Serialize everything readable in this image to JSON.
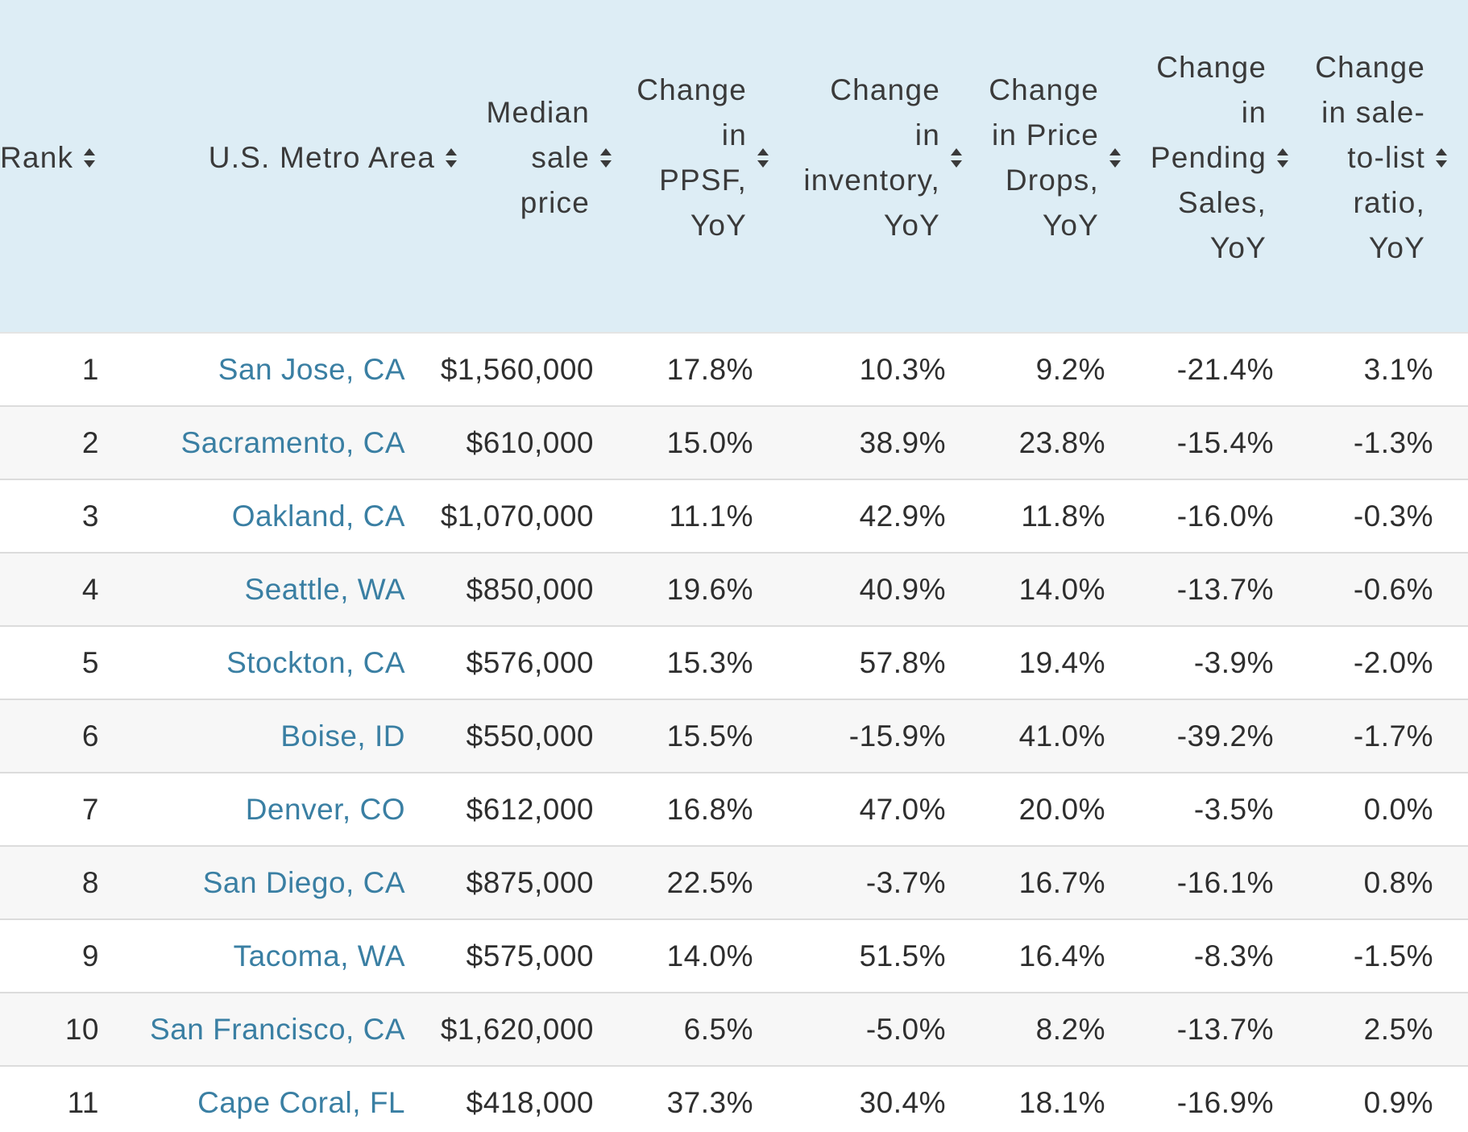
{
  "table": {
    "headers": [
      {
        "key": "rank",
        "label": "Rank"
      },
      {
        "key": "metro",
        "label": "U.S. Metro Area"
      },
      {
        "key": "price",
        "label": "Median\nsale\nprice"
      },
      {
        "key": "ppsf",
        "label": "Change\nin\nPPSF,\nYoY"
      },
      {
        "key": "inv",
        "label": "Change\nin\ninventory,\nYoY"
      },
      {
        "key": "drops",
        "label": "Change\nin Price\nDrops,\nYoY"
      },
      {
        "key": "pending",
        "label": "Change\nin\nPending\nSales,\nYoY"
      },
      {
        "key": "stl",
        "label": "Change\nin sale-\nto-list\nratio,\nYoY"
      }
    ],
    "rows": [
      {
        "rank": "1",
        "metro": "San Jose, CA",
        "price": "$1,560,000",
        "ppsf": "17.8%",
        "inv": "10.3%",
        "drops": "9.2%",
        "pending": "-21.4%",
        "stl": "3.1%"
      },
      {
        "rank": "2",
        "metro": "Sacramento, CA",
        "price": "$610,000",
        "ppsf": "15.0%",
        "inv": "38.9%",
        "drops": "23.8%",
        "pending": "-15.4%",
        "stl": "-1.3%"
      },
      {
        "rank": "3",
        "metro": "Oakland, CA",
        "price": "$1,070,000",
        "ppsf": "11.1%",
        "inv": "42.9%",
        "drops": "11.8%",
        "pending": "-16.0%",
        "stl": "-0.3%"
      },
      {
        "rank": "4",
        "metro": "Seattle, WA",
        "price": "$850,000",
        "ppsf": "19.6%",
        "inv": "40.9%",
        "drops": "14.0%",
        "pending": "-13.7%",
        "stl": "-0.6%"
      },
      {
        "rank": "5",
        "metro": "Stockton, CA",
        "price": "$576,000",
        "ppsf": "15.3%",
        "inv": "57.8%",
        "drops": "19.4%",
        "pending": "-3.9%",
        "stl": "-2.0%"
      },
      {
        "rank": "6",
        "metro": "Boise, ID",
        "price": "$550,000",
        "ppsf": "15.5%",
        "inv": "-15.9%",
        "drops": "41.0%",
        "pending": "-39.2%",
        "stl": "-1.7%"
      },
      {
        "rank": "7",
        "metro": "Denver, CO",
        "price": "$612,000",
        "ppsf": "16.8%",
        "inv": "47.0%",
        "drops": "20.0%",
        "pending": "-3.5%",
        "stl": "0.0%"
      },
      {
        "rank": "8",
        "metro": "San Diego, CA",
        "price": "$875,000",
        "ppsf": "22.5%",
        "inv": "-3.7%",
        "drops": "16.7%",
        "pending": "-16.1%",
        "stl": "0.8%"
      },
      {
        "rank": "9",
        "metro": "Tacoma, WA",
        "price": "$575,000",
        "ppsf": "14.0%",
        "inv": "51.5%",
        "drops": "16.4%",
        "pending": "-8.3%",
        "stl": "-1.5%"
      },
      {
        "rank": "10",
        "metro": "San Francisco, CA",
        "price": "$1,620,000",
        "ppsf": "6.5%",
        "inv": "-5.0%",
        "drops": "8.2%",
        "pending": "-13.7%",
        "stl": "2.5%"
      },
      {
        "rank": "11",
        "metro": "Cape Coral, FL",
        "price": "$418,000",
        "ppsf": "37.3%",
        "inv": "30.4%",
        "drops": "18.1%",
        "pending": "-16.9%",
        "stl": "0.9%"
      }
    ]
  },
  "colors": {
    "header_bg": "#ddedf5",
    "link": "#3a7fa3",
    "row_alt": "#f7f7f7"
  },
  "icons": {
    "sort": "sort-icon"
  }
}
